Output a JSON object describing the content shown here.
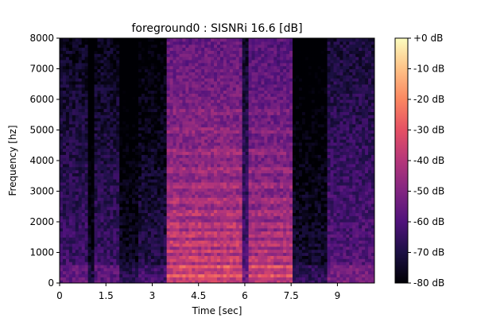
{
  "chart_data": {
    "type": "heatmap",
    "title": "foreground0 : SISNRi 16.6 [dB]",
    "xlabel": "Time [sec]",
    "ylabel": "Frequency [hz]",
    "xlim": [
      0,
      10.2
    ],
    "ylim": [
      0,
      8000
    ],
    "x_ticks": [
      0,
      1.5,
      3,
      4.5,
      6,
      7.5,
      9
    ],
    "x_tick_labels": [
      "0",
      "1.5",
      "3",
      "4.5",
      "6",
      "7.5",
      "9"
    ],
    "y_ticks": [
      0,
      1000,
      2000,
      3000,
      4000,
      5000,
      6000,
      7000,
      8000
    ],
    "y_tick_labels": [
      "0",
      "1000",
      "2000",
      "3000",
      "4000",
      "5000",
      "6000",
      "7000",
      "8000"
    ],
    "colorbar": {
      "colormap": "magma",
      "range_db": [
        -80,
        0
      ],
      "ticks": [
        0,
        -10,
        -20,
        -30,
        -40,
        -50,
        -60,
        -70,
        -80
      ],
      "tick_labels": [
        "+0 dB",
        "-10 dB",
        "-20 dB",
        "-30 dB",
        "-40 dB",
        "-50 dB",
        "-60 dB",
        "-70 dB",
        "-80 dB"
      ],
      "stops": [
        "#000004",
        "#1c1044",
        "#4f127b",
        "#812581",
        "#b5367a",
        "#e55064",
        "#fb8761",
        "#fec287",
        "#fcfdbf"
      ]
    },
    "energy_segments": [
      {
        "t_start": 0.0,
        "t_end": 0.9,
        "level_db": -62
      },
      {
        "t_start": 0.9,
        "t_end": 1.1,
        "level_db": -76
      },
      {
        "t_start": 1.1,
        "t_end": 1.9,
        "level_db": -63
      },
      {
        "t_start": 1.9,
        "t_end": 2.5,
        "level_db": -74
      },
      {
        "t_start": 2.5,
        "t_end": 3.5,
        "level_db": -68
      },
      {
        "t_start": 3.5,
        "t_end": 5.9,
        "level_db": -42
      },
      {
        "t_start": 5.9,
        "t_end": 6.1,
        "level_db": -60
      },
      {
        "t_start": 6.1,
        "t_end": 7.5,
        "level_db": -45
      },
      {
        "t_start": 7.5,
        "t_end": 8.7,
        "level_db": -72
      },
      {
        "t_start": 8.7,
        "t_end": 10.2,
        "level_db": -58
      }
    ],
    "harmonic_bands_hz": [
      250,
      550,
      800,
      1050,
      1300,
      1600,
      1900,
      2300,
      2700,
      3200,
      3700,
      4300,
      5000,
      5600
    ]
  }
}
